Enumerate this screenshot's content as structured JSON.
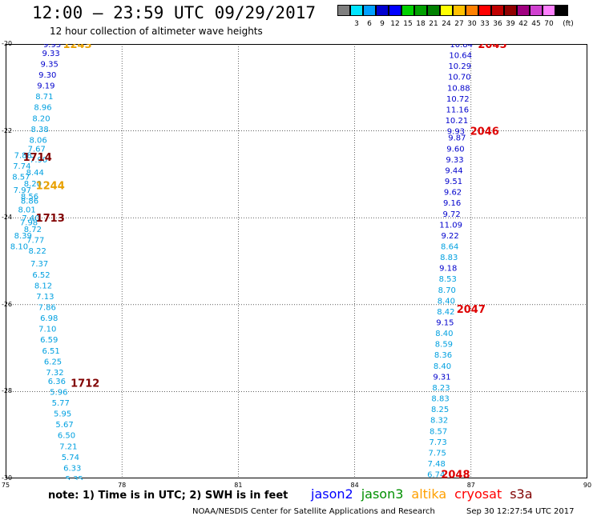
{
  "header": {
    "title": "12:00 – 23:59 UTC 09/29/2017",
    "subtitle": "12 hour collection of altimeter wave heights"
  },
  "colorbar": {
    "colors": [
      "#7f7f7f",
      "#00e5ff",
      "#00a0ff",
      "#0000d0",
      "#0000ff",
      "#00d000",
      "#00a000",
      "#008000",
      "#ffff00",
      "#ffc000",
      "#ff8000",
      "#ff0000",
      "#c00000",
      "#900000",
      "#a00080",
      "#d040d0",
      "#ff80ff",
      "#000000"
    ],
    "ticks": [
      "3",
      "6",
      "9",
      "12",
      "15",
      "18",
      "21",
      "24",
      "27",
      "30",
      "33",
      "36",
      "39",
      "42",
      "45",
      "70"
    ],
    "unit": "(ft)"
  },
  "map": {
    "lon_range": [
      75,
      90
    ],
    "lat_range": [
      -20,
      -30
    ],
    "lon_ticks": [
      "75",
      "78",
      "81",
      "84",
      "87",
      "90"
    ],
    "lat_ticks": [
      "-20",
      "-22",
      "-24",
      "-26",
      "-28",
      "-30"
    ],
    "lon_values": [
      75,
      78,
      81,
      84,
      87,
      90
    ],
    "lat_values": [
      -20,
      -22,
      -24,
      -26,
      -28,
      -30
    ]
  },
  "chart_data": {
    "type": "scatter",
    "level_colors": {
      "dark": "#0000cc",
      "light": "#00a0e0"
    },
    "west_track": [
      {
        "lat": -20.0,
        "lon": 76.2,
        "v": "9.95",
        "c": "dark"
      },
      {
        "lat": -20.2,
        "lon": 76.17,
        "v": "9.33",
        "c": "dark"
      },
      {
        "lat": -20.45,
        "lon": 76.13,
        "v": "9.35",
        "c": "dark"
      },
      {
        "lat": -20.7,
        "lon": 76.08,
        "v": "9.30",
        "c": "dark"
      },
      {
        "lat": -20.95,
        "lon": 76.04,
        "v": "9.19",
        "c": "dark"
      },
      {
        "lat": -21.2,
        "lon": 76.0,
        "v": "8.71",
        "c": "light"
      },
      {
        "lat": -21.45,
        "lon": 75.96,
        "v": "8.96",
        "c": "light"
      },
      {
        "lat": -21.7,
        "lon": 75.92,
        "v": "8.20",
        "c": "light"
      },
      {
        "lat": -21.95,
        "lon": 75.88,
        "v": "8.38",
        "c": "light"
      },
      {
        "lat": -22.2,
        "lon": 75.84,
        "v": "8.06",
        "c": "light"
      },
      {
        "lat": -22.4,
        "lon": 75.8,
        "v": "7.67",
        "c": "light"
      },
      {
        "lat": -22.55,
        "lon": 75.45,
        "v": "7.88",
        "c": "light"
      },
      {
        "lat": -22.65,
        "lon": 75.85,
        "v": "7.90",
        "c": "light"
      },
      {
        "lat": -22.8,
        "lon": 75.42,
        "v": "7.74",
        "c": "light"
      },
      {
        "lat": -22.95,
        "lon": 75.76,
        "v": "8.44",
        "c": "light"
      },
      {
        "lat": -23.05,
        "lon": 75.4,
        "v": "8.57",
        "c": "light"
      },
      {
        "lat": -23.2,
        "lon": 75.7,
        "v": "8.20",
        "c": "light"
      },
      {
        "lat": -23.35,
        "lon": 75.43,
        "v": "7.97",
        "c": "light"
      },
      {
        "lat": -23.5,
        "lon": 75.62,
        "v": "8.56",
        "c": "light"
      },
      {
        "lat": -23.6,
        "lon": 75.62,
        "v": "8.86",
        "c": "light"
      },
      {
        "lat": -23.8,
        "lon": 75.55,
        "v": "8.01",
        "c": "light"
      },
      {
        "lat": -24.0,
        "lon": 75.65,
        "v": "7.40",
        "c": "light"
      },
      {
        "lat": -24.1,
        "lon": 75.6,
        "v": "7.98",
        "c": "light"
      },
      {
        "lat": -24.25,
        "lon": 75.7,
        "v": "8.72",
        "c": "light"
      },
      {
        "lat": -24.4,
        "lon": 75.45,
        "v": "8.39",
        "c": "light"
      },
      {
        "lat": -24.5,
        "lon": 75.77,
        "v": "7.77",
        "c": "light"
      },
      {
        "lat": -24.65,
        "lon": 75.35,
        "v": "8.10",
        "c": "light"
      },
      {
        "lat": -24.75,
        "lon": 75.82,
        "v": "8.22",
        "c": "light"
      },
      {
        "lat": -25.05,
        "lon": 75.87,
        "v": "7.37",
        "c": "light"
      },
      {
        "lat": -25.3,
        "lon": 75.92,
        "v": "6.52",
        "c": "light"
      },
      {
        "lat": -25.55,
        "lon": 75.97,
        "v": "8.12",
        "c": "light"
      },
      {
        "lat": -25.8,
        "lon": 76.02,
        "v": "7.13",
        "c": "light"
      },
      {
        "lat": -26.05,
        "lon": 76.07,
        "v": "7.86",
        "c": "light"
      },
      {
        "lat": -26.3,
        "lon": 76.12,
        "v": "6.98",
        "c": "light"
      },
      {
        "lat": -26.55,
        "lon": 76.08,
        "v": "7.10",
        "c": "light"
      },
      {
        "lat": -26.8,
        "lon": 76.12,
        "v": "6.59",
        "c": "light"
      },
      {
        "lat": -27.05,
        "lon": 76.17,
        "v": "6.51",
        "c": "light"
      },
      {
        "lat": -27.3,
        "lon": 76.22,
        "v": "6.25",
        "c": "light"
      },
      {
        "lat": -27.55,
        "lon": 76.27,
        "v": "7.32",
        "c": "light"
      },
      {
        "lat": -27.75,
        "lon": 76.32,
        "v": "6.36",
        "c": "light"
      },
      {
        "lat": -28.0,
        "lon": 76.37,
        "v": "5.96",
        "c": "light"
      },
      {
        "lat": -28.25,
        "lon": 76.42,
        "v": "5.77",
        "c": "light"
      },
      {
        "lat": -28.5,
        "lon": 76.47,
        "v": "5.95",
        "c": "light"
      },
      {
        "lat": -28.75,
        "lon": 76.52,
        "v": "5.67",
        "c": "light"
      },
      {
        "lat": -29.0,
        "lon": 76.57,
        "v": "6.50",
        "c": "light"
      },
      {
        "lat": -29.25,
        "lon": 76.62,
        "v": "7.21",
        "c": "light"
      },
      {
        "lat": -29.5,
        "lon": 76.67,
        "v": "5.74",
        "c": "light"
      },
      {
        "lat": -29.75,
        "lon": 76.72,
        "v": "6.33",
        "c": "light"
      },
      {
        "lat": -30.0,
        "lon": 76.77,
        "v": "5.35",
        "c": "light"
      },
      {
        "lat": -30.25,
        "lon": 76.82,
        "v": "6.02",
        "c": "light"
      },
      {
        "lat": -30.5,
        "lon": 76.87,
        "v": "6.40",
        "c": "light"
      }
    ],
    "east_track": [
      {
        "lat": -20.0,
        "lon": 86.75,
        "v": "10.84",
        "c": "dark"
      },
      {
        "lat": -20.25,
        "lon": 86.73,
        "v": "10.64",
        "c": "dark"
      },
      {
        "lat": -20.5,
        "lon": 86.71,
        "v": "10.29",
        "c": "dark"
      },
      {
        "lat": -20.75,
        "lon": 86.7,
        "v": "10.70",
        "c": "dark"
      },
      {
        "lat": -21.0,
        "lon": 86.68,
        "v": "10.88",
        "c": "dark"
      },
      {
        "lat": -21.25,
        "lon": 86.66,
        "v": "10.72",
        "c": "dark"
      },
      {
        "lat": -21.5,
        "lon": 86.65,
        "v": "11.16",
        "c": "dark"
      },
      {
        "lat": -21.75,
        "lon": 86.63,
        "v": "10.21",
        "c": "dark"
      },
      {
        "lat": -22.0,
        "lon": 86.61,
        "v": "9.93",
        "c": "dark"
      },
      {
        "lat": -22.15,
        "lon": 86.64,
        "v": "9.87",
        "c": "dark"
      },
      {
        "lat": -22.4,
        "lon": 86.6,
        "v": "9.60",
        "c": "dark"
      },
      {
        "lat": -22.65,
        "lon": 86.58,
        "v": "9.33",
        "c": "dark"
      },
      {
        "lat": -22.9,
        "lon": 86.56,
        "v": "9.44",
        "c": "dark"
      },
      {
        "lat": -23.15,
        "lon": 86.55,
        "v": "9.51",
        "c": "dark"
      },
      {
        "lat": -23.4,
        "lon": 86.53,
        "v": "9.62",
        "c": "dark"
      },
      {
        "lat": -23.65,
        "lon": 86.51,
        "v": "9.16",
        "c": "dark"
      },
      {
        "lat": -23.9,
        "lon": 86.5,
        "v": "9.72",
        "c": "dark"
      },
      {
        "lat": -24.15,
        "lon": 86.48,
        "v": "11.09",
        "c": "dark"
      },
      {
        "lat": -24.4,
        "lon": 86.46,
        "v": "9.22",
        "c": "dark"
      },
      {
        "lat": -24.65,
        "lon": 86.45,
        "v": "8.64",
        "c": "light"
      },
      {
        "lat": -24.9,
        "lon": 86.43,
        "v": "8.83",
        "c": "light"
      },
      {
        "lat": -25.15,
        "lon": 86.41,
        "v": "9.18",
        "c": "dark"
      },
      {
        "lat": -25.4,
        "lon": 86.4,
        "v": "8.53",
        "c": "light"
      },
      {
        "lat": -25.65,
        "lon": 86.38,
        "v": "8.70",
        "c": "light"
      },
      {
        "lat": -25.9,
        "lon": 86.36,
        "v": "8.40",
        "c": "light"
      },
      {
        "lat": -26.15,
        "lon": 86.35,
        "v": "8.42",
        "c": "light"
      },
      {
        "lat": -26.4,
        "lon": 86.33,
        "v": "9.15",
        "c": "dark"
      },
      {
        "lat": -26.65,
        "lon": 86.31,
        "v": "8.40",
        "c": "light"
      },
      {
        "lat": -26.9,
        "lon": 86.3,
        "v": "8.59",
        "c": "light"
      },
      {
        "lat": -27.15,
        "lon": 86.28,
        "v": "8.36",
        "c": "light"
      },
      {
        "lat": -27.4,
        "lon": 86.26,
        "v": "8.40",
        "c": "light"
      },
      {
        "lat": -27.65,
        "lon": 86.25,
        "v": "9.31",
        "c": "dark"
      },
      {
        "lat": -27.9,
        "lon": 86.23,
        "v": "8.23",
        "c": "light"
      },
      {
        "lat": -28.15,
        "lon": 86.21,
        "v": "8.83",
        "c": "light"
      },
      {
        "lat": -28.4,
        "lon": 86.2,
        "v": "8.25",
        "c": "light"
      },
      {
        "lat": -28.65,
        "lon": 86.18,
        "v": "8.32",
        "c": "light"
      },
      {
        "lat": -28.9,
        "lon": 86.16,
        "v": "8.57",
        "c": "light"
      },
      {
        "lat": -29.15,
        "lon": 86.15,
        "v": "7.73",
        "c": "light"
      },
      {
        "lat": -29.4,
        "lon": 86.13,
        "v": "7.75",
        "c": "light"
      },
      {
        "lat": -29.65,
        "lon": 86.11,
        "v": "7.48",
        "c": "light"
      },
      {
        "lat": -29.9,
        "lon": 86.1,
        "v": "6.74",
        "c": "light"
      },
      {
        "lat": -30.15,
        "lon": 86.08,
        "v": "8.04",
        "c": "light"
      },
      {
        "lat": -30.4,
        "lon": 86.06,
        "v": "6.07",
        "c": "light"
      },
      {
        "lat": -30.65,
        "lon": 86.05,
        "v": "7.20",
        "c": "light"
      }
    ],
    "pass_labels": [
      {
        "text": "1243",
        "lat": -20.0,
        "lon": 76.85,
        "color": "#e8a000"
      },
      {
        "text": "1714",
        "lat": -22.6,
        "lon": 75.82,
        "color": "#800000"
      },
      {
        "text": "1244",
        "lat": -23.25,
        "lon": 76.15,
        "color": "#e8a000"
      },
      {
        "text": "1713",
        "lat": -24.0,
        "lon": 76.15,
        "color": "#800000"
      },
      {
        "text": "1712",
        "lat": -27.8,
        "lon": 77.05,
        "color": "#800000"
      },
      {
        "text": "2045",
        "lat": -20.0,
        "lon": 87.55,
        "color": "#dd0000"
      },
      {
        "text": "2046",
        "lat": -22.0,
        "lon": 87.35,
        "color": "#dd0000"
      },
      {
        "text": "2047",
        "lat": -26.1,
        "lon": 87.0,
        "color": "#dd0000"
      },
      {
        "text": "2048",
        "lat": -29.9,
        "lon": 86.6,
        "color": "#dd0000"
      }
    ]
  },
  "footer": {
    "note": "note:  1) Time is in UTC;  2) SWH is in feet",
    "legend": [
      {
        "name": "jason2",
        "color": "#0000ff"
      },
      {
        "name": "jason3",
        "color": "#009000"
      },
      {
        "name": "altika",
        "color": "#ffa000"
      },
      {
        "name": "cryosat",
        "color": "#ff0000"
      },
      {
        "name": "s3a",
        "color": "#800000"
      }
    ],
    "credit": "NOAA/NESDIS Center for Satellite Applications and Research",
    "timestamp": "Sep 30 12:27:54 UTC 2017"
  }
}
